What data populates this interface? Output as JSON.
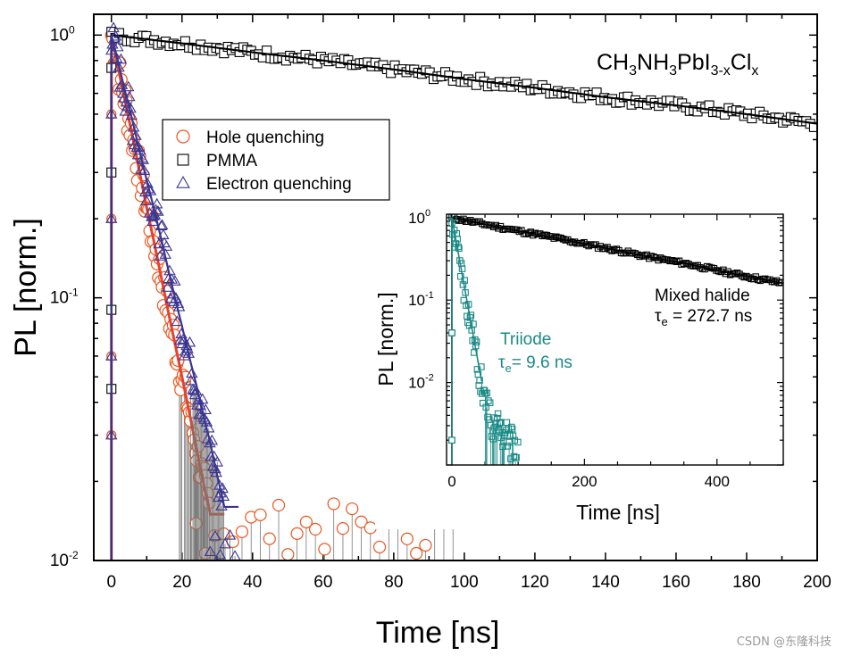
{
  "chart_data": [
    {
      "type": "scatter",
      "xlabel": "Time [ns]",
      "ylabel": "PL [norm.]",
      "xlim": [
        -5,
        200
      ],
      "ylim": [
        0.01,
        1.2
      ],
      "yscale": "log",
      "x_ticks": [
        0,
        20,
        40,
        60,
        80,
        100,
        120,
        140,
        160,
        180,
        200
      ],
      "y_ticks": [
        {
          "value": 1,
          "label": "10",
          "exp": "0"
        },
        {
          "value": 0.1,
          "label": "10",
          "exp": "-1"
        },
        {
          "value": 0.01,
          "label": "10",
          "exp": "-2"
        }
      ],
      "legend": {
        "position": "top-left",
        "entries": [
          {
            "name": "Hole quenching",
            "marker": "circle",
            "color": "#e8571f"
          },
          {
            "name": "PMMA",
            "marker": "square",
            "color": "#000000"
          },
          {
            "name": "Electron quenching",
            "marker": "triangle",
            "color": "#3b3592"
          }
        ]
      },
      "compound": {
        "parts": [
          {
            "t": "CH",
            "sub": false
          },
          {
            "t": "3",
            "sub": true
          },
          {
            "t": "NH",
            "sub": false
          },
          {
            "t": "3",
            "sub": true
          },
          {
            "t": "PbI",
            "sub": false
          },
          {
            "t": "3-x",
            "sub": true
          },
          {
            "t": "Cl",
            "sub": false
          },
          {
            "t": "x",
            "sub": true
          }
        ]
      },
      "series": [
        {
          "name": "Hole quenching",
          "color": "#e8571f",
          "fit_color": "#e8402a",
          "x": [
            0,
            2,
            4,
            6,
            8,
            10,
            12,
            14,
            16,
            18,
            20,
            22,
            24,
            26,
            28
          ],
          "y": [
            1.0,
            0.74,
            0.55,
            0.41,
            0.3,
            0.22,
            0.165,
            0.122,
            0.09,
            0.067,
            0.05,
            0.037,
            0.027,
            0.02,
            0.015
          ]
        },
        {
          "name": "PMMA",
          "color": "#000000",
          "fit_color": "#000000",
          "x": [
            0,
            20,
            40,
            60,
            80,
            100,
            120,
            140,
            160,
            180,
            200
          ],
          "y": [
            1.0,
            0.93,
            0.86,
            0.8,
            0.74,
            0.68,
            0.63,
            0.58,
            0.54,
            0.5,
            0.46
          ]
        },
        {
          "name": "Electron quenching",
          "color": "#3b3592",
          "fit_color": "#3b3592",
          "x": [
            0,
            2,
            4,
            6,
            8,
            10,
            12,
            14,
            16,
            18,
            20,
            22,
            24,
            26,
            28,
            30,
            32
          ],
          "y": [
            1.0,
            0.78,
            0.6,
            0.47,
            0.36,
            0.28,
            0.22,
            0.17,
            0.13,
            0.1,
            0.078,
            0.06,
            0.047,
            0.036,
            0.028,
            0.021,
            0.016
          ]
        }
      ]
    },
    {
      "type": "scatter",
      "xlabel": "Time [ns]",
      "ylabel": "PL [norm.]",
      "xlim": [
        -8,
        500
      ],
      "ylim": [
        0.001,
        1.1
      ],
      "yscale": "log",
      "x_ticks": [
        0,
        200,
        400
      ],
      "y_ticks": [
        {
          "value": 1,
          "label": "10",
          "exp": "0"
        },
        {
          "value": 0.1,
          "label": "10",
          "exp": "-1"
        },
        {
          "value": 0.01,
          "label": "10",
          "exp": "-2"
        }
      ],
      "annotations": [
        {
          "line1": "Mixed halide",
          "line2_pre": "τ",
          "line2_sub": "e",
          "line2_post": " = 272.7 ns",
          "color": "#000000"
        },
        {
          "line1": "Triiode",
          "line2_pre": "τ",
          "line2_sub": "e",
          "line2_post": "= 9.6 ns",
          "color": "#1a8a86"
        }
      ],
      "series": [
        {
          "name": "Mixed halide",
          "color": "#000000",
          "x": [
            0,
            50,
            100,
            150,
            200,
            250,
            300,
            350,
            400,
            450,
            500
          ],
          "y": [
            1.0,
            0.83,
            0.69,
            0.58,
            0.48,
            0.4,
            0.33,
            0.28,
            0.23,
            0.19,
            0.16
          ]
        },
        {
          "name": "Triiode",
          "color": "#1a8a86",
          "x": [
            0,
            10,
            20,
            30,
            40,
            50,
            60,
            70,
            80,
            90,
            100
          ],
          "y": [
            1.0,
            0.36,
            0.13,
            0.047,
            0.017,
            0.0062,
            0.0035,
            0.003,
            0.0025,
            0.002,
            0.0015
          ]
        }
      ]
    }
  ],
  "watermark": "CSDN @东隆科技"
}
